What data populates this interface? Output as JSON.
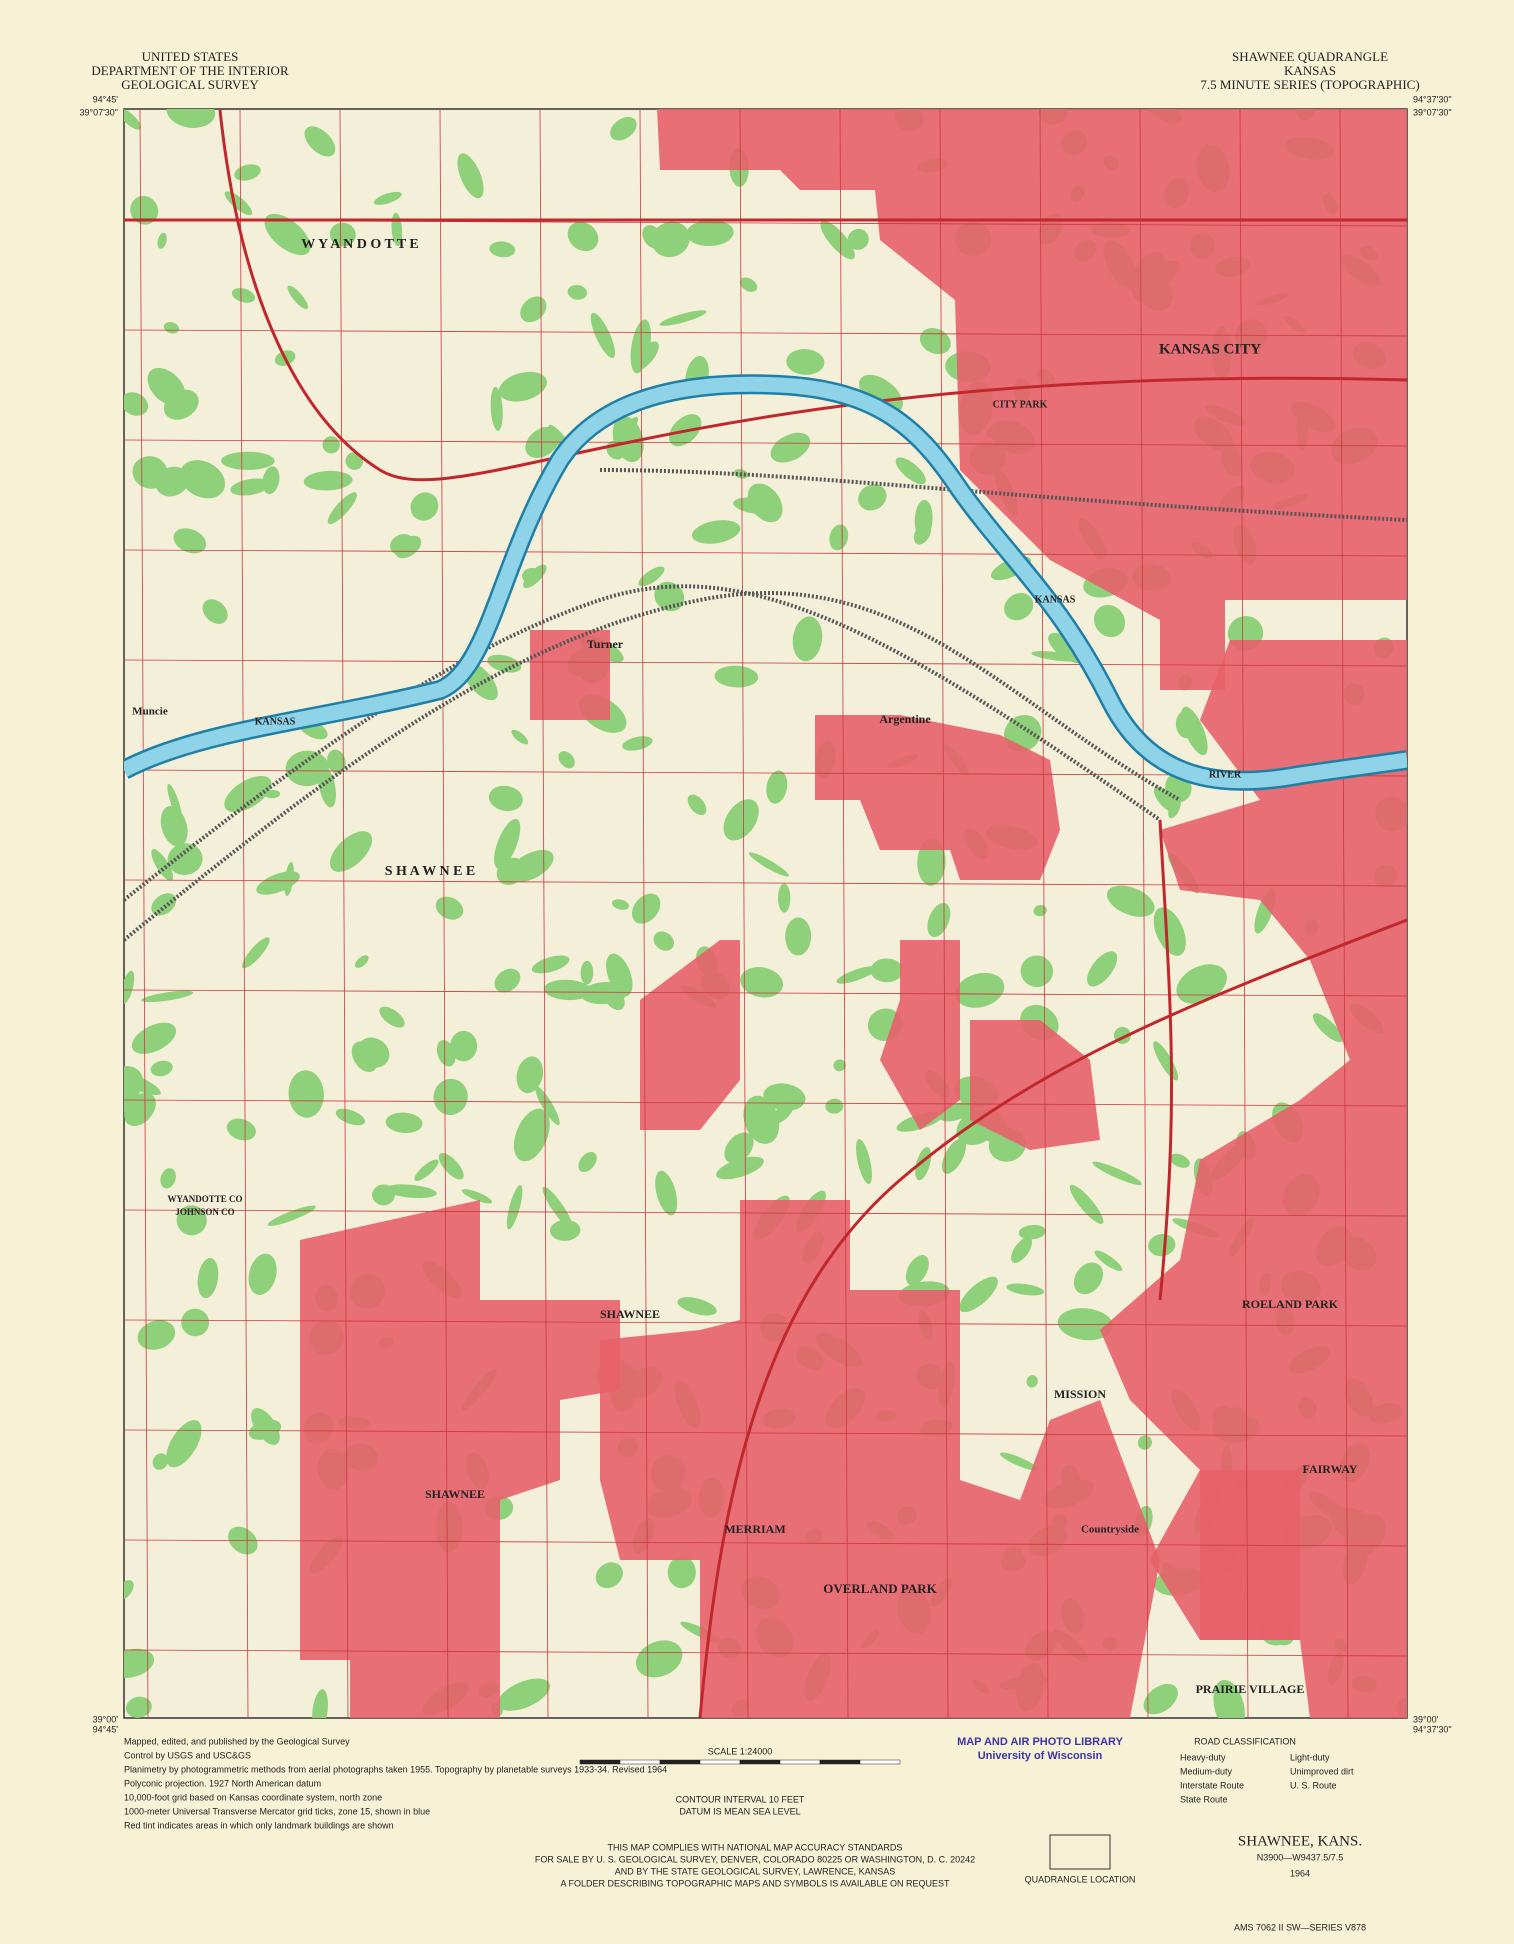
{
  "header": {
    "left": [
      "UNITED STATES",
      "DEPARTMENT OF THE INTERIOR",
      "GEOLOGICAL SURVEY"
    ],
    "right": [
      "SHAWNEE QUADRANGLE",
      "KANSAS",
      "7.5 MINUTE SERIES (TOPOGRAPHIC)"
    ]
  },
  "corners": {
    "west": "94°45'",
    "east": "94°37'30\"",
    "north": "39°07'30\"",
    "south": "39°00'"
  },
  "places": [
    "KANSAS CITY",
    "Argentine",
    "Turner",
    "Muncie",
    "S H A W N E E",
    "W Y A N D O T T E",
    "SHAWNEE",
    "SHAWNEE",
    "MERRIAM",
    "MISSION",
    "OVERLAND PARK",
    "ROELAND PARK",
    "FAIRWAY",
    "Countryside",
    "PRAIRIE VILLAGE",
    "KANSAS",
    "RIVER",
    "KANSAS",
    "CITY PARK",
    "WYANDOTTE CO",
    "JOHNSON CO"
  ],
  "footer": {
    "notes": [
      "Mapped, edited, and published by the Geological Survey",
      "Control by USGS and USC&GS",
      "Planimetry by photogrammetric methods from aerial photographs taken 1955. Topography by planetable surveys 1933-34. Revised 1964",
      "Polyconic projection. 1927 North American datum",
      "10,000-foot grid based on Kansas coordinate system, north zone",
      "1000-meter Universal Transverse Mercator grid ticks, zone 15, shown in blue",
      "Red tint indicates areas in which only landmark buildings are shown"
    ],
    "scale": "SCALE 1:24000",
    "contour": "CONTOUR INTERVAL 10 FEET",
    "datum": "DATUM IS MEAN SEA LEVEL",
    "compliance": [
      "THIS MAP COMPLIES WITH NATIONAL MAP ACCURACY STANDARDS",
      "FOR SALE BY U. S. GEOLOGICAL SURVEY, DENVER, COLORADO 80225 OR WASHINGTON, D. C. 20242",
      "AND BY THE STATE GEOLOGICAL SURVEY, LAWRENCE, KANSAS",
      "A FOLDER DESCRIBING TOPOGRAPHIC MAPS AND SYMBOLS IS AVAILABLE ON REQUEST"
    ],
    "stamp": [
      "MAP AND AIR PHOTO LIBRARY",
      "University of Wisconsin"
    ],
    "roads": {
      "title": "ROAD CLASSIFICATION",
      "items": [
        "Heavy-duty",
        "Light-duty",
        "Medium-duty",
        "Unimproved dirt",
        "Interstate Route",
        "U. S. Route",
        "State Route"
      ]
    },
    "quad_location": "QUADRANGLE LOCATION",
    "name": "SHAWNEE, KANS.",
    "code": "N3900—W9437.5/7.5",
    "year": "1964",
    "series": "AMS 7062 II SW—SERIES V878"
  }
}
